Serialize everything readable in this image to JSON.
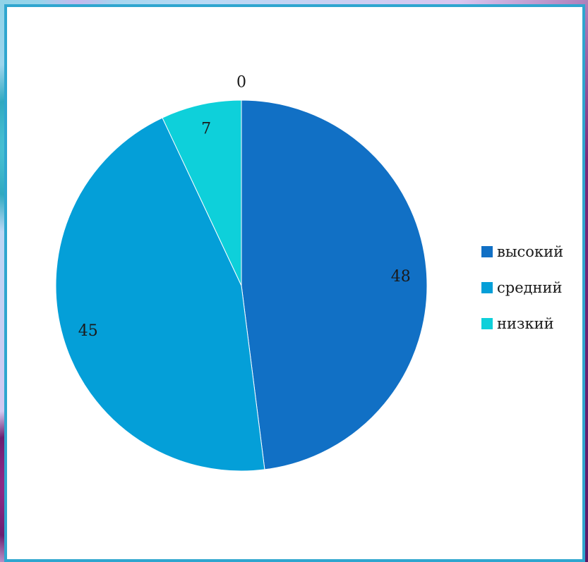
{
  "chart_data": {
    "type": "pie",
    "categories": [
      "высокий",
      "средний",
      "низкий",
      ""
    ],
    "values": [
      48,
      45,
      7,
      0
    ],
    "data_labels": [
      "48",
      "45",
      "7",
      "0"
    ],
    "colors": [
      "#1170c5",
      "#049fd8",
      "#0ed0da",
      "#2fb9e0"
    ],
    "legend_position": "right",
    "start_angle": "12 o'clock, clockwise"
  },
  "legend": {
    "items": [
      {
        "label": "высокий",
        "color": "#1170c5"
      },
      {
        "label": "средний",
        "color": "#049fd8"
      },
      {
        "label": "низкий",
        "color": "#0ed0da"
      }
    ]
  },
  "colors": {
    "frame_border": "#2fa6cf",
    "panel_background": "#ffffff"
  }
}
